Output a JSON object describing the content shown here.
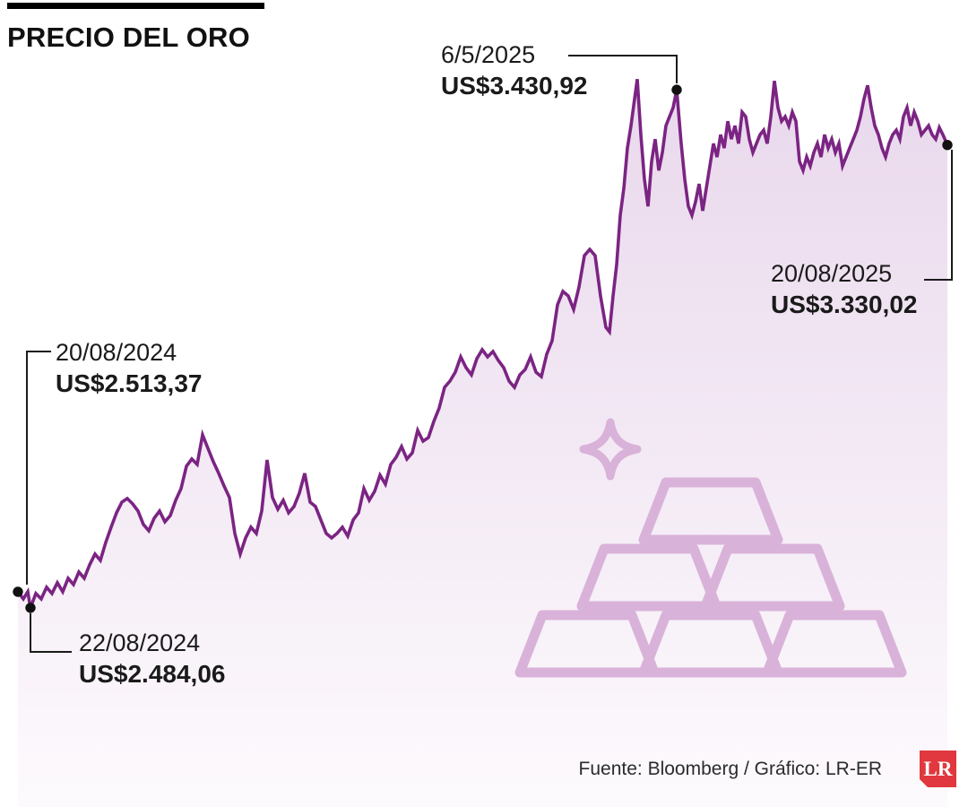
{
  "title": "PRECIO DEL ORO",
  "annotations": [
    {
      "date": "20/08/2024",
      "value": "US$2.513,37"
    },
    {
      "date": "22/08/2024",
      "value": "US$2.484,06"
    },
    {
      "date": "6/5/2025",
      "value": "US$3.430,92"
    },
    {
      "date": "20/08/2025",
      "value": "US$3.330,02"
    }
  ],
  "footer": {
    "source": "Fuente: Bloomberg / Gráfico: LR-ER",
    "logo_text": "LR"
  },
  "icons": {
    "watermark": "gold-bars-icon",
    "sparkle": "sparkle-icon",
    "logo": "lr-logo"
  },
  "colors": {
    "line": "#7b2483",
    "fill_top": "#e9d8ec",
    "fill_bottom": "#fdfafd",
    "watermark": "#d9b2d9",
    "dot": "#111111",
    "callout": "#1a1a1a",
    "logo_red": "#e0383e",
    "text": "#1a1a1a"
  },
  "chart_data": {
    "type": "area",
    "title": "PRECIO DEL ORO",
    "x_start_date": "20/08/2024",
    "x_end_date": "20/08/2025",
    "ylim": [
      2120,
      3595
    ],
    "xlim": [
      0,
      1080
    ],
    "grid": false,
    "legend": "none",
    "markers": [
      {
        "x": 20,
        "price": 2513.37,
        "label": "20/08/2024"
      },
      {
        "x": 34,
        "price": 2484.06,
        "label": "22/08/2024"
      },
      {
        "x": 755,
        "price": 3430.92,
        "label": "6/5/2025"
      },
      {
        "x": 1057,
        "price": 3330.02,
        "label": "20/08/2025"
      }
    ],
    "series": [
      {
        "name": "Precio del oro (US$)",
        "points": [
          [
            20,
            2513.37
          ],
          [
            26,
            2500.4
          ],
          [
            31,
            2513.5
          ],
          [
            34,
            2484.06
          ],
          [
            40,
            2510.3
          ],
          [
            46,
            2500.4
          ],
          [
            52,
            2521.7
          ],
          [
            58,
            2510.3
          ],
          [
            64,
            2529.9
          ],
          [
            70,
            2513.5
          ],
          [
            76,
            2538.1
          ],
          [
            82,
            2526.6
          ],
          [
            88,
            2549.6
          ],
          [
            94,
            2538.1
          ],
          [
            100,
            2562.7
          ],
          [
            106,
            2582.3
          ],
          [
            112,
            2570.9
          ],
          [
            118,
            2603.6
          ],
          [
            124,
            2631.5
          ],
          [
            130,
            2657.7
          ],
          [
            136,
            2677.3
          ],
          [
            142,
            2683.9
          ],
          [
            148,
            2674.1
          ],
          [
            154,
            2661.0
          ],
          [
            160,
            2636.4
          ],
          [
            166,
            2624.9
          ],
          [
            172,
            2647.9
          ],
          [
            178,
            2661.0
          ],
          [
            184,
            2641.3
          ],
          [
            190,
            2652.8
          ],
          [
            196,
            2680.6
          ],
          [
            202,
            2701.9
          ],
          [
            208,
            2742.9
          ],
          [
            214,
            2756.0
          ],
          [
            220,
            2746.2
          ],
          [
            226,
            2800.2
          ],
          [
            232,
            2775.6
          ],
          [
            238,
            2751.1
          ],
          [
            244,
            2729.8
          ],
          [
            250,
            2706.8
          ],
          [
            256,
            2685.5
          ],
          [
            262,
            2620.0
          ],
          [
            268,
            2582.3
          ],
          [
            274,
            2611.8
          ],
          [
            280,
            2631.5
          ],
          [
            286,
            2620.0
          ],
          [
            292,
            2661.0
          ],
          [
            298,
            2754.3
          ],
          [
            304,
            2685.5
          ],
          [
            310,
            2664.2
          ],
          [
            316,
            2680.6
          ],
          [
            322,
            2657.7
          ],
          [
            328,
            2669.2
          ],
          [
            334,
            2693.7
          ],
          [
            340,
            2729.8
          ],
          [
            346,
            2677.3
          ],
          [
            352,
            2669.2
          ],
          [
            358,
            2644.6
          ],
          [
            364,
            2620.0
          ],
          [
            370,
            2611.8
          ],
          [
            376,
            2620.0
          ],
          [
            382,
            2631.5
          ],
          [
            388,
            2615.1
          ],
          [
            394,
            2644.6
          ],
          [
            400,
            2657.7
          ],
          [
            406,
            2701.9
          ],
          [
            412,
            2680.6
          ],
          [
            418,
            2697.0
          ],
          [
            424,
            2726.5
          ],
          [
            430,
            2710.1
          ],
          [
            436,
            2746.2
          ],
          [
            442,
            2759.3
          ],
          [
            448,
            2778.9
          ],
          [
            454,
            2756.0
          ],
          [
            460,
            2767.4
          ],
          [
            466,
            2808.4
          ],
          [
            472,
            2788.7
          ],
          [
            478,
            2795.3
          ],
          [
            484,
            2824.8
          ],
          [
            490,
            2849.3
          ],
          [
            496,
            2887.0
          ],
          [
            502,
            2898.5
          ],
          [
            508,
            2914.9
          ],
          [
            514,
            2942.7
          ],
          [
            520,
            2923.1
          ],
          [
            526,
            2910.0
          ],
          [
            532,
            2939.4
          ],
          [
            538,
            2955.8
          ],
          [
            544,
            2942.7
          ],
          [
            550,
            2952.5
          ],
          [
            556,
            2936.2
          ],
          [
            562,
            2923.1
          ],
          [
            568,
            2898.5
          ],
          [
            574,
            2887.0
          ],
          [
            580,
            2910.0
          ],
          [
            586,
            2919.8
          ],
          [
            592,
            2942.7
          ],
          [
            598,
            2914.9
          ],
          [
            604,
            2906.7
          ],
          [
            610,
            2947.6
          ],
          [
            616,
            2972.2
          ],
          [
            622,
            3037.7
          ],
          [
            628,
            3062.3
          ],
          [
            634,
            3054.1
          ],
          [
            640,
            3029.5
          ],
          [
            646,
            3070.5
          ],
          [
            652,
            3127.8
          ],
          [
            658,
            3139.3
          ],
          [
            664,
            3127.8
          ],
          [
            670,
            3054.1
          ],
          [
            676,
            2996.8
          ],
          [
            680,
            2988.6
          ],
          [
            684,
            3054.1
          ],
          [
            688,
            3111.4
          ],
          [
            692,
            3201.5
          ],
          [
            696,
            3250.7
          ],
          [
            700,
            3324.4
          ],
          [
            704,
            3365.3
          ],
          [
            708,
            3414.4
          ],
          [
            711,
            3450.5
          ],
          [
            715,
            3348.9
          ],
          [
            719,
            3267.1
          ],
          [
            723,
            3217.9
          ],
          [
            727,
            3299.8
          ],
          [
            731,
            3340.7
          ],
          [
            735,
            3283.4
          ],
          [
            739,
            3316.2
          ],
          [
            743,
            3365.3
          ],
          [
            747,
            3381.7
          ],
          [
            751,
            3398.1
          ],
          [
            755,
            3430.92
          ],
          [
            760,
            3332.6
          ],
          [
            764,
            3267.1
          ],
          [
            768,
            3217.9
          ],
          [
            772,
            3201.5
          ],
          [
            776,
            3226.1
          ],
          [
            780,
            3258.9
          ],
          [
            784,
            3209.7
          ],
          [
            788,
            3250.7
          ],
          [
            792,
            3291.6
          ],
          [
            796,
            3332.6
          ],
          [
            800,
            3308.0
          ],
          [
            804,
            3348.9
          ],
          [
            808,
            3324.4
          ],
          [
            812,
            3373.5
          ],
          [
            816,
            3340.7
          ],
          [
            820,
            3365.3
          ],
          [
            824,
            3332.6
          ],
          [
            828,
            3389.9
          ],
          [
            832,
            3381.7
          ],
          [
            836,
            3340.7
          ],
          [
            840,
            3316.2
          ],
          [
            844,
            3332.6
          ],
          [
            848,
            3348.9
          ],
          [
            852,
            3357.1
          ],
          [
            856,
            3332.6
          ],
          [
            860,
            3381.7
          ],
          [
            864,
            3447.2
          ],
          [
            868,
            3398.1
          ],
          [
            872,
            3373.5
          ],
          [
            876,
            3381.7
          ],
          [
            880,
            3365.3
          ],
          [
            884,
            3389.9
          ],
          [
            888,
            3373.5
          ],
          [
            892,
            3299.8
          ],
          [
            896,
            3283.4
          ],
          [
            900,
            3308.0
          ],
          [
            904,
            3291.6
          ],
          [
            908,
            3316.2
          ],
          [
            912,
            3332.6
          ],
          [
            916,
            3308.0
          ],
          [
            920,
            3348.9
          ],
          [
            924,
            3324.4
          ],
          [
            928,
            3340.7
          ],
          [
            932,
            3316.2
          ],
          [
            936,
            3332.6
          ],
          [
            940,
            3291.6
          ],
          [
            944,
            3308.0
          ],
          [
            948,
            3324.4
          ],
          [
            952,
            3340.7
          ],
          [
            956,
            3357.1
          ],
          [
            960,
            3381.7
          ],
          [
            964,
            3414.4
          ],
          [
            968,
            3439.0
          ],
          [
            972,
            3398.1
          ],
          [
            976,
            3365.3
          ],
          [
            980,
            3348.9
          ],
          [
            984,
            3324.4
          ],
          [
            988,
            3308.0
          ],
          [
            992,
            3332.6
          ],
          [
            996,
            3348.9
          ],
          [
            1000,
            3357.1
          ],
          [
            1004,
            3340.7
          ],
          [
            1008,
            3381.7
          ],
          [
            1012,
            3398.1
          ],
          [
            1016,
            3365.3
          ],
          [
            1020,
            3389.9
          ],
          [
            1024,
            3373.5
          ],
          [
            1028,
            3348.9
          ],
          [
            1032,
            3357.1
          ],
          [
            1036,
            3365.3
          ],
          [
            1040,
            3348.9
          ],
          [
            1044,
            3340.7
          ],
          [
            1048,
            3362.0
          ],
          [
            1052,
            3348.9
          ],
          [
            1057,
            3330.02
          ]
        ]
      }
    ]
  }
}
